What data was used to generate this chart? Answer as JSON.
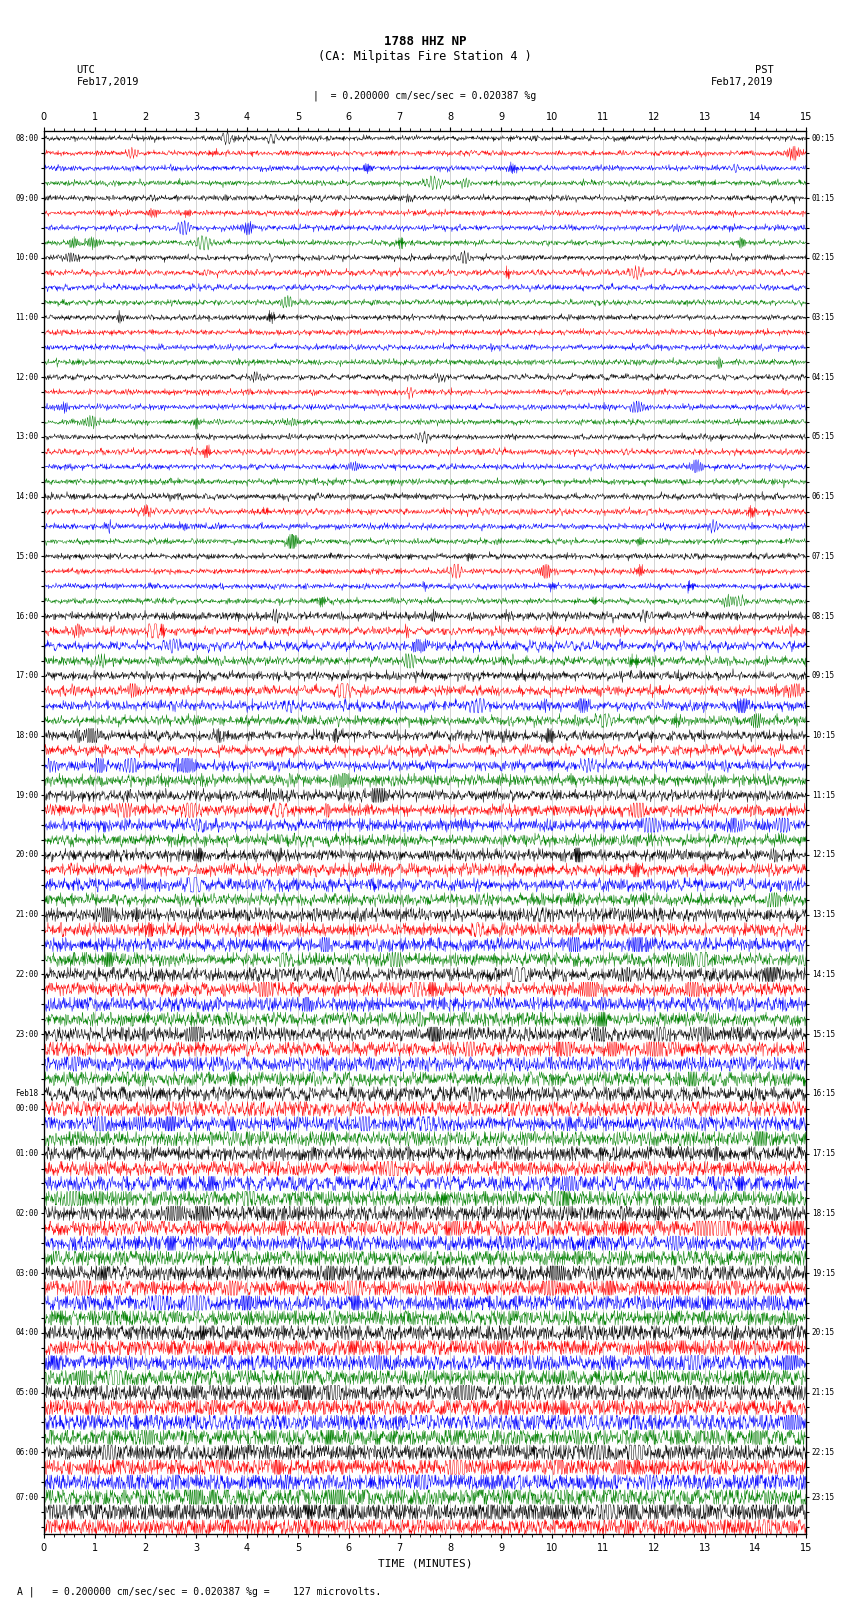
{
  "title_line1": "1788 HHZ NP",
  "title_line2": "(CA: Milpitas Fire Station 4 )",
  "label_utc": "UTC",
  "label_pst": "PST",
  "date_left": "Feb17,2019",
  "date_right": "Feb17,2019",
  "scale_bar_text": "= 0.200000 cm/sec/sec = 0.020387 %g",
  "footer_text": "= 0.200000 cm/sec/sec = 0.020387 %g =    127 microvolts.",
  "xlabel": "TIME (MINUTES)",
  "bg_color": "#ffffff",
  "trace_colors": [
    "black",
    "red",
    "blue",
    "green"
  ],
  "n_minutes": 15,
  "n_rows": 94,
  "row_labels_left": [
    "08:00",
    "",
    "",
    "",
    "09:00",
    "",
    "",
    "",
    "10:00",
    "",
    "",
    "",
    "11:00",
    "",
    "",
    "",
    "12:00",
    "",
    "",
    "",
    "13:00",
    "",
    "",
    "",
    "14:00",
    "",
    "",
    "",
    "15:00",
    "",
    "",
    "",
    "16:00",
    "",
    "",
    "",
    "17:00",
    "",
    "",
    "",
    "18:00",
    "",
    "",
    "",
    "19:00",
    "",
    "",
    "",
    "20:00",
    "",
    "",
    "",
    "21:00",
    "",
    "",
    "",
    "22:00",
    "",
    "",
    "",
    "23:00",
    "",
    "",
    "",
    "Feb18",
    "00:00",
    "",
    "",
    "01:00",
    "",
    "",
    "",
    "02:00",
    "",
    "",
    "",
    "03:00",
    "",
    "",
    "",
    "04:00",
    "",
    "",
    "",
    "05:00",
    "",
    "",
    "",
    "06:00",
    "",
    "",
    "07:00",
    "",
    "",
    ""
  ],
  "row_labels_right": [
    "00:15",
    "",
    "",
    "",
    "01:15",
    "",
    "",
    "",
    "02:15",
    "",
    "",
    "",
    "03:15",
    "",
    "",
    "",
    "04:15",
    "",
    "",
    "",
    "05:15",
    "",
    "",
    "",
    "06:15",
    "",
    "",
    "",
    "07:15",
    "",
    "",
    "",
    "08:15",
    "",
    "",
    "",
    "09:15",
    "",
    "",
    "",
    "10:15",
    "",
    "",
    "",
    "11:15",
    "",
    "",
    "",
    "12:15",
    "",
    "",
    "",
    "13:15",
    "",
    "",
    "",
    "14:15",
    "",
    "",
    "",
    "15:15",
    "",
    "",
    "",
    "16:15",
    "",
    "",
    "",
    "17:15",
    "",
    "",
    "",
    "18:15",
    "",
    "",
    "",
    "19:15",
    "",
    "",
    "",
    "20:15",
    "",
    "",
    "",
    "21:15",
    "",
    "",
    "",
    "22:15",
    "",
    "",
    "23:15",
    "",
    "",
    ""
  ]
}
